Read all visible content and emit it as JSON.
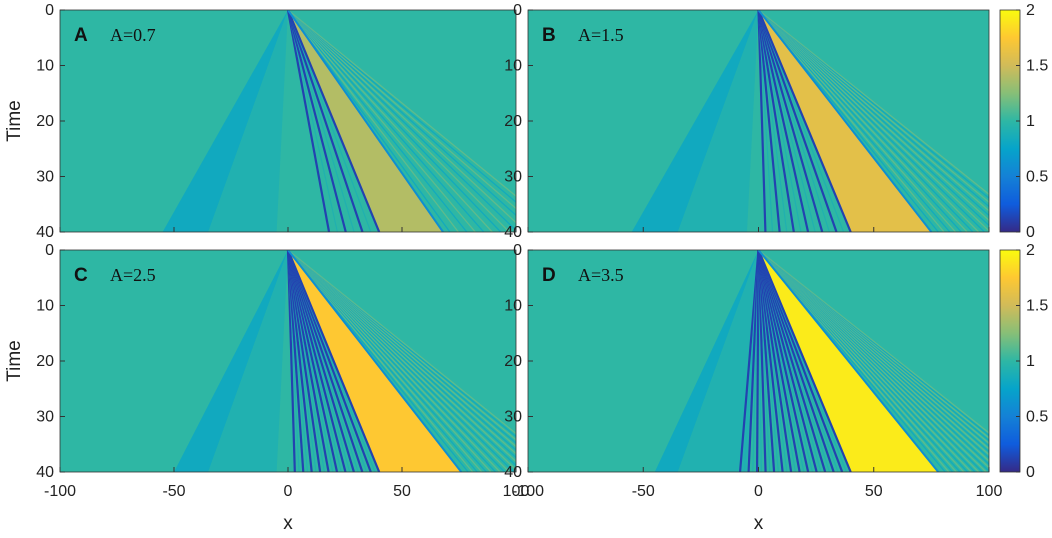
{
  "chart_data": [
    {
      "type": "heatmap",
      "panel_letter": "A",
      "annotation": "A=0.7",
      "amplitude": 0.7,
      "x_range": [
        -100,
        100
      ],
      "y_range": [
        0,
        40
      ],
      "ylabel": "Time",
      "xlabel": "",
      "y_ticks": [
        "0",
        "10",
        "20",
        "30",
        "40"
      ],
      "x_ticks": [],
      "plateau_value": 1.4,
      "background_value": 1,
      "left_front_x_at_t40": -55,
      "dispersive_front_x_at_t40": 40,
      "right_front_x_at_t40": 68,
      "dark_soliton_count": 4
    },
    {
      "type": "heatmap",
      "panel_letter": "B",
      "annotation": "A=1.5",
      "amplitude": 1.5,
      "x_range": [
        -100,
        100
      ],
      "y_range": [
        0,
        40
      ],
      "ylabel": "",
      "xlabel": "",
      "y_ticks": [
        "0",
        "10",
        "20",
        "30",
        "40"
      ],
      "x_ticks": [],
      "plateau_value": 1.6,
      "background_value": 1,
      "left_front_x_at_t40": -55,
      "dispersive_front_x_at_t40": 40,
      "right_front_x_at_t40": 75,
      "dark_soliton_count": 7
    },
    {
      "type": "heatmap",
      "panel_letter": "C",
      "annotation": "A=2.5",
      "amplitude": 2.5,
      "x_range": [
        -100,
        100
      ],
      "y_range": [
        0,
        40
      ],
      "ylabel": "Time",
      "xlabel": "x",
      "y_ticks": [
        "0",
        "10",
        "20",
        "30",
        "40"
      ],
      "x_ticks": [
        "-100",
        "-50",
        "0",
        "50",
        "100"
      ],
      "plateau_value": 1.75,
      "background_value": 1,
      "left_front_x_at_t40": -50,
      "dispersive_front_x_at_t40": 40,
      "right_front_x_at_t40": 76,
      "dark_soliton_count": 11
    },
    {
      "type": "heatmap",
      "panel_letter": "D",
      "annotation": "A=3.5",
      "amplitude": 3.5,
      "x_range": [
        -100,
        100
      ],
      "y_range": [
        0,
        40
      ],
      "ylabel": "",
      "xlabel": "x",
      "y_ticks": [
        "0",
        "10",
        "20",
        "30",
        "40"
      ],
      "x_ticks": [
        "-100",
        "-50",
        "0",
        "50",
        "100"
      ],
      "plateau_value": 1.92,
      "background_value": 1,
      "left_front_x_at_t40": -45,
      "dispersive_front_x_at_t40": 40,
      "right_front_x_at_t40": 78,
      "dark_soliton_count": 14
    }
  ],
  "colorbar": {
    "ticks": [
      "0",
      "0.5",
      "1",
      "1.5",
      "2"
    ],
    "range": [
      0,
      2
    ],
    "colormap": "parula",
    "stops": [
      "#352a87",
      "#0f5cdd",
      "#1481d6",
      "#06a4ca",
      "#2eb7a4",
      "#87bf77",
      "#d1bb59",
      "#fec832",
      "#f9fb0e"
    ]
  }
}
